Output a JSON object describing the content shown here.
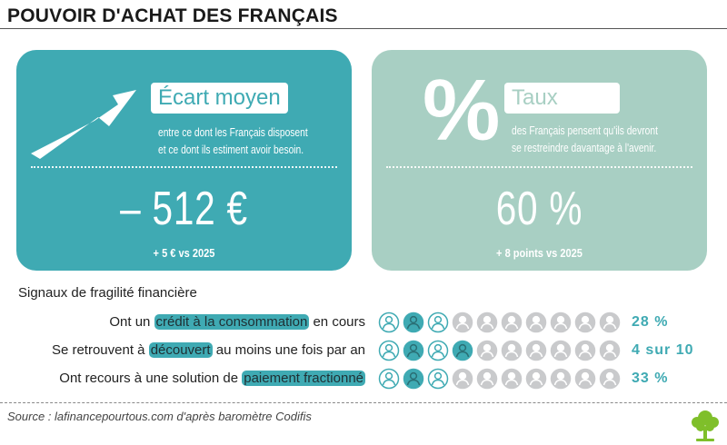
{
  "header": {
    "title": "POUVOIR D'ACHAT DES FRANÇAIS"
  },
  "cards": {
    "left": {
      "label": "Écart moyen",
      "desc_line1": "entre ce dont les Français disposent",
      "desc_line2": "et ce dont ils estiment avoir besoin.",
      "value": "– 512 €",
      "sub": "+ 5 € vs 2025",
      "icon": "rising-arrow-icon"
    },
    "right": {
      "label": "Taux",
      "desc_line1": "des Français pensent qu'ils devront",
      "desc_line2": "se restreindre davantage à l'avenir.",
      "value": "60 %",
      "sub": "+ 8 points vs 2025",
      "icon": "percent-icon",
      "icon_glyph": "%"
    }
  },
  "signals": {
    "title": "Signaux de fragilité financière",
    "rows": [
      {
        "pre": "Ont un ",
        "highlight": "crédit à la consommation",
        "post": " en cours",
        "value": "28 %",
        "filled": 3
      },
      {
        "pre": "Se retrouvent à ",
        "highlight": "découvert",
        "post": " au moins une fois par an",
        "value": "4 sur 10",
        "filled": 4
      },
      {
        "pre": "Ont recours à une solution de ",
        "highlight": "paiement fractionné",
        "post": "",
        "value": "33 %",
        "filled": 3
      }
    ]
  },
  "footer": {
    "source": "Source : lafinancepourtous.com d'après baromètre Codifis"
  },
  "colors": {
    "teal": "#3faab3",
    "sage": "#a8cfc3",
    "grey_icon": "#c9cacc",
    "dark_fill": "#3faab3",
    "logo_green": "#7fbf2a"
  }
}
